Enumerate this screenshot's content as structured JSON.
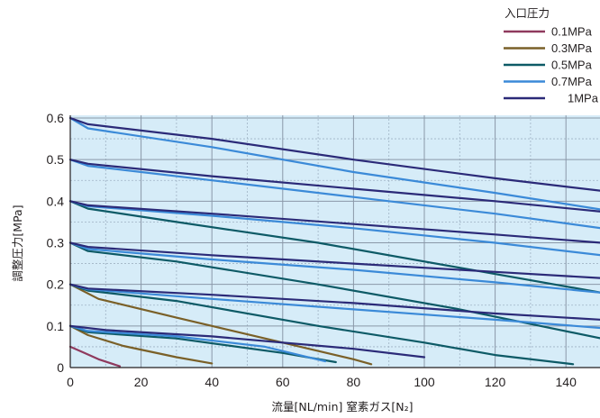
{
  "chart_data": {
    "type": "line",
    "xlabel": "流量[NL/min]  窒素ガス[N₂]",
    "ylabel": "調整圧力[MPa]",
    "xlim": [
      0,
      150
    ],
    "ylim": [
      0,
      0.6
    ],
    "x_ticks": [
      "0",
      "20",
      "40",
      "60",
      "80",
      "100",
      "120",
      "140"
    ],
    "y_ticks": [
      "0",
      "0.1",
      "0.2",
      "0.3",
      "0.4",
      "0.5",
      "0.6"
    ],
    "grid": true,
    "legend": {
      "title": "入口圧力",
      "position": "top-right",
      "entries": [
        {
          "label": "0.1MPa",
          "color": "#8f3a5e"
        },
        {
          "label": "0.3MPa",
          "color": "#7a6028"
        },
        {
          "label": "0.5MPa",
          "color": "#0d5a66"
        },
        {
          "label": "0.7MPa",
          "color": "#3b8ad8"
        },
        {
          "label": "1MPa",
          "color": "#2b2a78"
        }
      ]
    },
    "series": [
      {
        "inlet": "0.1MPa",
        "color": "#8f3a5e",
        "points": [
          [
            0,
            0.05
          ],
          [
            4,
            0.035
          ],
          [
            8,
            0.02
          ],
          [
            14,
            0.003
          ]
        ]
      },
      {
        "inlet": "0.3MPa",
        "color": "#7a6028",
        "points": [
          [
            0,
            0.1
          ],
          [
            5,
            0.078
          ],
          [
            15,
            0.052
          ],
          [
            30,
            0.025
          ],
          [
            40,
            0.01
          ]
        ]
      },
      {
        "inlet": "0.3MPa",
        "color": "#7a6028",
        "points": [
          [
            0,
            0.2
          ],
          [
            8,
            0.165
          ],
          [
            30,
            0.12
          ],
          [
            55,
            0.07
          ],
          [
            80,
            0.02
          ],
          [
            85,
            0.008
          ]
        ]
      },
      {
        "inlet": "0.5MPa",
        "color": "#0d5a66",
        "points": [
          [
            0,
            0.1
          ],
          [
            5,
            0.085
          ],
          [
            30,
            0.07
          ],
          [
            60,
            0.035
          ],
          [
            75,
            0.013
          ]
        ]
      },
      {
        "inlet": "0.5MPa",
        "color": "#0d5a66",
        "points": [
          [
            0,
            0.2
          ],
          [
            5,
            0.185
          ],
          [
            30,
            0.16
          ],
          [
            70,
            0.1
          ],
          [
            100,
            0.06
          ],
          [
            120,
            0.03
          ],
          [
            142,
            0.008
          ]
        ]
      },
      {
        "inlet": "0.5MPa",
        "color": "#0d5a66",
        "points": [
          [
            0,
            0.3
          ],
          [
            5,
            0.28
          ],
          [
            30,
            0.255
          ],
          [
            70,
            0.2
          ],
          [
            110,
            0.14
          ],
          [
            150,
            0.07
          ]
        ]
      },
      {
        "inlet": "0.5MPa",
        "color": "#0d5a66",
        "points": [
          [
            0,
            0.4
          ],
          [
            5,
            0.382
          ],
          [
            30,
            0.35
          ],
          [
            70,
            0.3
          ],
          [
            110,
            0.24
          ],
          [
            150,
            0.18
          ]
        ]
      },
      {
        "inlet": "0.7MPa",
        "color": "#3b8ad8",
        "points": [
          [
            0,
            0.1
          ],
          [
            5,
            0.088
          ],
          [
            30,
            0.075
          ],
          [
            55,
            0.05
          ],
          [
            72,
            0.015
          ]
        ]
      },
      {
        "inlet": "0.7MPa",
        "color": "#3b8ad8",
        "points": [
          [
            0,
            0.2
          ],
          [
            5,
            0.188
          ],
          [
            40,
            0.165
          ],
          [
            80,
            0.14
          ],
          [
            120,
            0.115
          ],
          [
            150,
            0.095
          ]
        ]
      },
      {
        "inlet": "0.7MPa",
        "color": "#3b8ad8",
        "points": [
          [
            0,
            0.3
          ],
          [
            5,
            0.285
          ],
          [
            40,
            0.26
          ],
          [
            80,
            0.235
          ],
          [
            120,
            0.205
          ],
          [
            150,
            0.18
          ]
        ]
      },
      {
        "inlet": "0.7MPa",
        "color": "#3b8ad8",
        "points": [
          [
            0,
            0.4
          ],
          [
            5,
            0.388
          ],
          [
            40,
            0.365
          ],
          [
            80,
            0.335
          ],
          [
            120,
            0.3
          ],
          [
            150,
            0.27
          ]
        ]
      },
      {
        "inlet": "0.7MPa",
        "color": "#3b8ad8",
        "points": [
          [
            0,
            0.5
          ],
          [
            5,
            0.485
          ],
          [
            40,
            0.45
          ],
          [
            80,
            0.41
          ],
          [
            120,
            0.37
          ],
          [
            150,
            0.335
          ]
        ]
      },
      {
        "inlet": "0.7MPa",
        "color": "#3b8ad8",
        "points": [
          [
            0,
            0.6
          ],
          [
            5,
            0.575
          ],
          [
            40,
            0.53
          ],
          [
            80,
            0.47
          ],
          [
            120,
            0.42
          ],
          [
            150,
            0.38
          ]
        ]
      },
      {
        "inlet": "1MPa",
        "color": "#2b2a78",
        "points": [
          [
            0,
            0.1
          ],
          [
            10,
            0.09
          ],
          [
            40,
            0.075
          ],
          [
            80,
            0.045
          ],
          [
            100,
            0.025
          ]
        ]
      },
      {
        "inlet": "1MPa",
        "color": "#2b2a78",
        "points": [
          [
            0,
            0.2
          ],
          [
            5,
            0.19
          ],
          [
            40,
            0.175
          ],
          [
            80,
            0.155
          ],
          [
            120,
            0.13
          ],
          [
            150,
            0.115
          ]
        ]
      },
      {
        "inlet": "1MPa",
        "color": "#2b2a78",
        "points": [
          [
            0,
            0.3
          ],
          [
            5,
            0.29
          ],
          [
            40,
            0.27
          ],
          [
            80,
            0.25
          ],
          [
            120,
            0.23
          ],
          [
            150,
            0.215
          ]
        ]
      },
      {
        "inlet": "1MPa",
        "color": "#2b2a78",
        "points": [
          [
            0,
            0.4
          ],
          [
            5,
            0.39
          ],
          [
            40,
            0.37
          ],
          [
            80,
            0.345
          ],
          [
            120,
            0.32
          ],
          [
            150,
            0.3
          ]
        ]
      },
      {
        "inlet": "1MPa",
        "color": "#2b2a78",
        "points": [
          [
            0,
            0.5
          ],
          [
            5,
            0.49
          ],
          [
            40,
            0.46
          ],
          [
            80,
            0.43
          ],
          [
            120,
            0.4
          ],
          [
            150,
            0.375
          ]
        ]
      },
      {
        "inlet": "1MPa",
        "color": "#2b2a78",
        "points": [
          [
            0,
            0.6
          ],
          [
            5,
            0.585
          ],
          [
            40,
            0.55
          ],
          [
            80,
            0.5
          ],
          [
            120,
            0.455
          ],
          [
            150,
            0.425
          ]
        ]
      }
    ]
  }
}
